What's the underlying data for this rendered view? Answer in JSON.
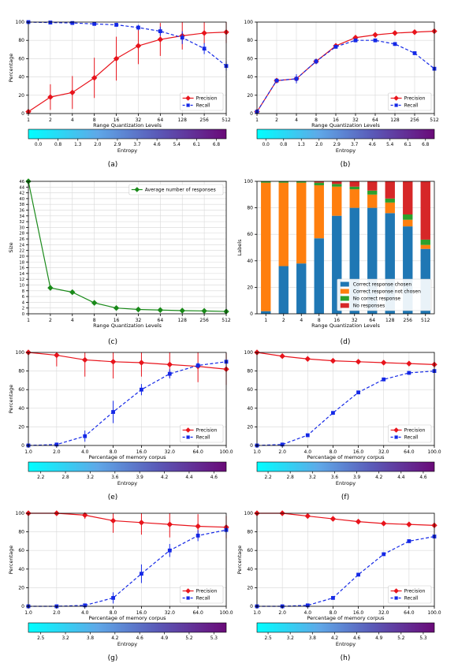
{
  "chart_data": [
    {
      "id": "a",
      "type": "line",
      "x_labels": [
        "1",
        "2",
        "4",
        "8",
        "16",
        "32",
        "64",
        "128",
        "256",
        "512"
      ],
      "xlabel": "Range Quantization Levels",
      "ylabel": "Percentage",
      "ylim": [
        0,
        100
      ],
      "yticks": [
        0,
        20,
        40,
        60,
        80,
        100
      ],
      "grid": true,
      "legend": "lower-right",
      "series": [
        {
          "name": "Precision",
          "color": "#e8141c",
          "marker": "diamond",
          "dashed": false,
          "errorbars": true,
          "values": [
            2,
            18,
            23,
            39,
            60,
            74,
            81,
            85,
            88,
            89
          ],
          "errors": [
            0,
            14,
            18,
            22,
            24,
            20,
            18,
            15,
            12,
            12
          ]
        },
        {
          "name": "Recall",
          "color": "#1428e6",
          "marker": "square",
          "dashed": true,
          "errorbars": true,
          "values": [
            100,
            99.5,
            99,
            98,
            97,
            94,
            90,
            83,
            71,
            52
          ],
          "errors": [
            0,
            0,
            0,
            1,
            2,
            3,
            5,
            7,
            6,
            5
          ]
        }
      ],
      "colorbar": {
        "label": "Entropy",
        "ticks": [
          "0.0",
          "0.8",
          "1.3",
          "2.0",
          "2.9",
          "3.7",
          "4.6",
          "5.4",
          "6.1",
          "6.8"
        ]
      },
      "caption": "(a)"
    },
    {
      "id": "b",
      "type": "line",
      "x_labels": [
        "1",
        "2",
        "4",
        "8",
        "16",
        "32",
        "64",
        "128",
        "256",
        "512"
      ],
      "xlabel": "Range Quantization Levels",
      "ylabel": "",
      "ylim": [
        0,
        100
      ],
      "yticks": [
        0,
        20,
        40,
        60,
        80,
        100
      ],
      "grid": true,
      "legend": "lower-right",
      "series": [
        {
          "name": "Precision",
          "color": "#e8141c",
          "marker": "diamond",
          "dashed": false,
          "errorbars": false,
          "values": [
            2,
            36,
            38,
            57,
            74,
            83,
            86,
            88,
            89,
            90
          ]
        },
        {
          "name": "Recall",
          "color": "#1428e6",
          "marker": "square",
          "dashed": true,
          "errorbars": true,
          "values": [
            2,
            36,
            38,
            57,
            73,
            80,
            80,
            76,
            66,
            49
          ],
          "errors": [
            0,
            2,
            5,
            3,
            1,
            1,
            1,
            1,
            1,
            1
          ]
        }
      ],
      "colorbar": {
        "label": "Entropy",
        "ticks": [
          "0.0",
          "0.8",
          "1.3",
          "2.0",
          "2.9",
          "3.7",
          "4.6",
          "5.4",
          "6.1",
          "6.8"
        ]
      },
      "caption": "(b)"
    },
    {
      "id": "c",
      "type": "line",
      "x_labels": [
        "1",
        "2",
        "4",
        "8",
        "16",
        "32",
        "64",
        "128",
        "256",
        "512"
      ],
      "xlabel": "Range Quantization Levels",
      "ylabel": "Size",
      "ylim": [
        0,
        46
      ],
      "yticks": [
        0,
        2,
        4,
        6,
        8,
        10,
        12,
        14,
        16,
        18,
        20,
        22,
        24,
        26,
        28,
        30,
        32,
        34,
        36,
        38,
        40,
        42,
        44,
        46
      ],
      "grid": true,
      "legend": "top-right",
      "series": [
        {
          "name": "Average number of responses",
          "color": "#1a8a1a",
          "marker": "diamond",
          "dashed": false,
          "errorbars": false,
          "values": [
            46,
            9,
            7.5,
            3.8,
            2,
            1.5,
            1.3,
            1.1,
            1,
            0.8
          ]
        }
      ],
      "caption": "(c)"
    },
    {
      "id": "d",
      "type": "bar",
      "stacked": true,
      "categories": [
        "1",
        "2",
        "4",
        "8",
        "16",
        "32",
        "64",
        "128",
        "256",
        "512"
      ],
      "xlabel": "Range Quantization Levels",
      "ylabel": "Labels",
      "ylim": [
        0,
        100
      ],
      "yticks": [
        0,
        20,
        40,
        60,
        80,
        100
      ],
      "grid": true,
      "legend": "lower-right",
      "series": [
        {
          "name": "Correct response chosen",
          "color": "#1f77b4",
          "values": [
            2,
            36,
            38,
            57,
            74,
            80,
            80,
            76,
            66,
            49
          ]
        },
        {
          "name": "Correct response not chosen",
          "color": "#ff7f0e",
          "values": [
            97,
            63,
            61,
            40,
            22,
            14,
            10,
            8,
            5,
            3
          ]
        },
        {
          "name": "No correct response",
          "color": "#2ca02c",
          "values": [
            1,
            1,
            1,
            2,
            2,
            2,
            3,
            3,
            4,
            4
          ]
        },
        {
          "name": "No responses",
          "color": "#d62728",
          "values": [
            0,
            0,
            0,
            1,
            2,
            4,
            7,
            13,
            25,
            44
          ]
        }
      ],
      "caption": "(d)"
    },
    {
      "id": "e",
      "type": "line",
      "x_labels": [
        "1.0",
        "2.0",
        "4.0",
        "8.0",
        "16.0",
        "32.0",
        "64.0",
        "100.0"
      ],
      "xlabel": "Percentage of memory corpus",
      "ylabel": "Percentage",
      "ylim": [
        0,
        100
      ],
      "yticks": [
        0,
        20,
        40,
        60,
        80,
        100
      ],
      "grid": true,
      "legend": "lower-right",
      "series": [
        {
          "name": "Precision",
          "color": "#e8141c",
          "marker": "diamond",
          "dashed": false,
          "errorbars": true,
          "values": [
            100,
            97,
            92,
            90,
            89,
            87,
            85,
            82
          ],
          "errors": [
            0,
            12,
            18,
            18,
            15,
            14,
            17,
            17
          ]
        },
        {
          "name": "Recall",
          "color": "#1428e6",
          "marker": "square",
          "dashed": true,
          "errorbars": true,
          "values": [
            0,
            1,
            10,
            36,
            60,
            77,
            86,
            90
          ],
          "errors": [
            0,
            1,
            6,
            12,
            6,
            5,
            3,
            2
          ]
        }
      ],
      "colorbar": {
        "label": "Entropy",
        "ticks": [
          "2.2",
          "2.8",
          "3.2",
          "3.6",
          "3.9",
          "4.2",
          "4.4",
          "4.6"
        ]
      },
      "caption": "(e)"
    },
    {
      "id": "f",
      "type": "line",
      "x_labels": [
        "1.0",
        "2.0",
        "4.0",
        "8.0",
        "16.0",
        "32.0",
        "64.0",
        "100.0"
      ],
      "xlabel": "Percentage of memory corpus",
      "ylabel": "",
      "ylim": [
        0,
        100
      ],
      "yticks": [
        0,
        20,
        40,
        60,
        80,
        100
      ],
      "grid": true,
      "legend": "lower-right",
      "series": [
        {
          "name": "Precision",
          "color": "#e8141c",
          "marker": "diamond",
          "dashed": false,
          "errorbars": false,
          "values": [
            100,
            96,
            93,
            91,
            90,
            89,
            88,
            87
          ]
        },
        {
          "name": "Recall",
          "color": "#1428e6",
          "marker": "square",
          "dashed": true,
          "errorbars": false,
          "values": [
            0,
            1,
            11,
            35,
            57,
            71,
            78,
            80
          ]
        }
      ],
      "colorbar": {
        "label": "Entropy",
        "ticks": [
          "2.2",
          "2.8",
          "3.2",
          "3.6",
          "3.9",
          "4.2",
          "4.4",
          "4.6"
        ]
      },
      "caption": "(f)"
    },
    {
      "id": "g",
      "type": "line",
      "x_labels": [
        "1.0",
        "2.0",
        "4.0",
        "8.0",
        "16.0",
        "32.0",
        "64.0",
        "100.0"
      ],
      "xlabel": "Percentage of memory corpus",
      "ylabel": "Percentage",
      "ylim": [
        0,
        100
      ],
      "yticks": [
        0,
        20,
        40,
        60,
        80,
        100
      ],
      "grid": true,
      "legend": "lower-right",
      "series": [
        {
          "name": "Precision",
          "color": "#e8141c",
          "marker": "diamond",
          "dashed": false,
          "errorbars": true,
          "values": [
            100,
            100,
            98,
            92,
            90,
            88,
            86,
            85
          ],
          "errors": [
            0,
            0,
            4,
            13,
            13,
            14,
            13,
            12
          ]
        },
        {
          "name": "Recall",
          "color": "#1428e6",
          "marker": "square",
          "dashed": true,
          "errorbars": true,
          "values": [
            0,
            0,
            1,
            9,
            35,
            60,
            76,
            82
          ],
          "errors": [
            0,
            0,
            1,
            6,
            10,
            7,
            6,
            5
          ]
        }
      ],
      "colorbar": {
        "label": "Entropy",
        "ticks": [
          "2.5",
          "3.2",
          "3.8",
          "4.2",
          "4.6",
          "4.9",
          "5.2",
          "5.3"
        ]
      },
      "caption": "(g)"
    },
    {
      "id": "h",
      "type": "line",
      "x_labels": [
        "1.0",
        "2.0",
        "4.0",
        "8.0",
        "16.0",
        "32.0",
        "64.0",
        "100.0"
      ],
      "xlabel": "Percentage of memory corpus",
      "ylabel": "Percentage",
      "ylim": [
        0,
        100
      ],
      "yticks": [
        0,
        20,
        40,
        60,
        80,
        100
      ],
      "grid": true,
      "legend": "lower-right",
      "series": [
        {
          "name": "Precision",
          "color": "#e8141c",
          "marker": "diamond",
          "dashed": false,
          "errorbars": false,
          "values": [
            100,
            100,
            97,
            94,
            91,
            89,
            88,
            87
          ]
        },
        {
          "name": "Recall",
          "color": "#1428e6",
          "marker": "square",
          "dashed": true,
          "errorbars": false,
          "values": [
            0,
            0,
            1,
            9,
            34,
            56,
            70,
            75
          ]
        }
      ],
      "colorbar": {
        "label": "Entropy",
        "ticks": [
          "2.5",
          "3.2",
          "3.8",
          "4.2",
          "4.6",
          "4.9",
          "5.2",
          "5.3"
        ]
      },
      "caption": "(h)"
    }
  ]
}
